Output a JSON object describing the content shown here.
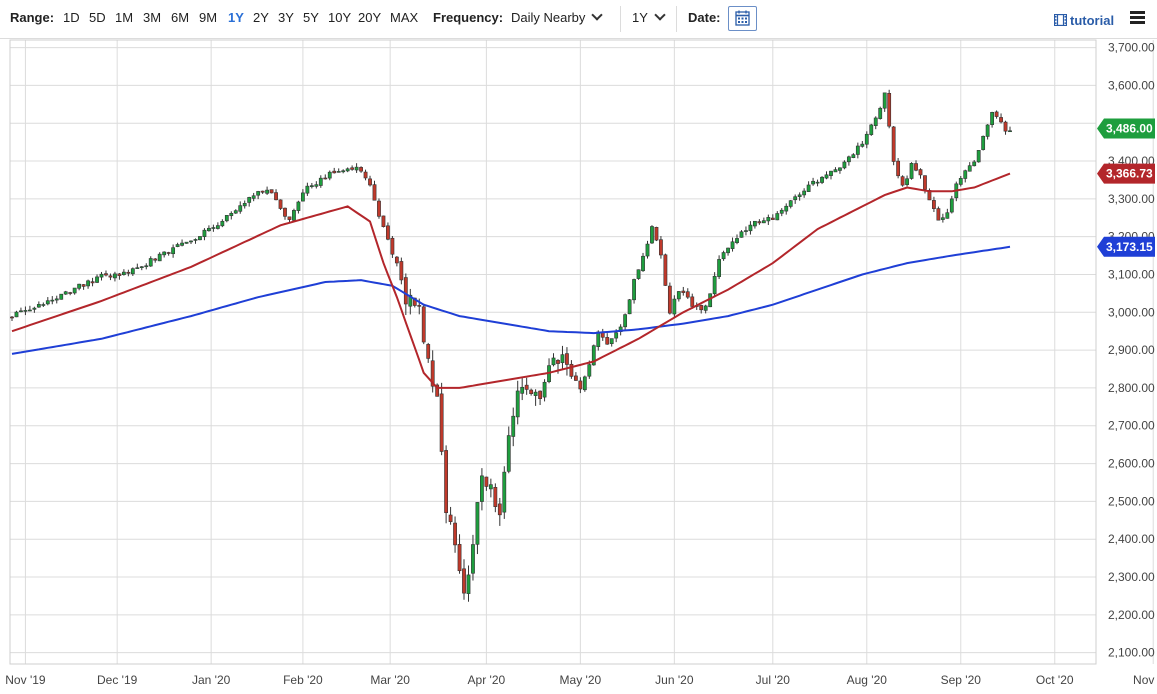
{
  "toolbar": {
    "range_label": "Range:",
    "ranges": [
      "1D",
      "5D",
      "1M",
      "3M",
      "6M",
      "9M",
      "1Y",
      "2Y",
      "3Y",
      "5Y",
      "10Y",
      "20Y",
      "MAX"
    ],
    "active_range": "1Y",
    "frequency_label": "Frequency:",
    "frequency_value": "Daily Nearby",
    "period_value": "1Y",
    "date_label": "Date:",
    "tutorial_label": "tutorial",
    "accent_color": "#2a6fd6"
  },
  "chart_data": {
    "type": "candlestick",
    "y_ticks": [
      "2,100.00",
      "2,200.00",
      "2,300.00",
      "2,400.00",
      "2,500.00",
      "2,600.00",
      "2,700.00",
      "2,800.00",
      "2,900.00",
      "3,000.00",
      "3,100.00",
      "3,200.00",
      "3,300.00",
      "3,400.00",
      "3,500.00",
      "3,600.00",
      "3,700.00"
    ],
    "ylim": [
      2070,
      3720
    ],
    "x_ticks": [
      "Nov '19",
      "Dec '19",
      "Jan '20",
      "Feb '20",
      "Mar '20",
      "Apr '20",
      "May '20",
      "Jun '20",
      "Jul '20",
      "Aug '20",
      "Sep '20",
      "Oct '20",
      "Nov '20"
    ],
    "grid": true,
    "badges": [
      {
        "label": "3,486.00",
        "value": 3486.0,
        "color": "#1e9e3e"
      },
      {
        "label": "3,366.73",
        "value": 3366.73,
        "color": "#b3262b"
      },
      {
        "label": "3,173.15",
        "value": 3173.15,
        "color": "#1f3fd6"
      }
    ],
    "colors": {
      "up": "#1e9e3e",
      "down": "#c0392b",
      "ma50": "#b3262b",
      "ma200": "#1f3fd6",
      "grid": "#dcdcdc"
    },
    "close_anchors": [
      [
        0,
        2990
      ],
      [
        10,
        3040
      ],
      [
        20,
        3095
      ],
      [
        27,
        3110
      ],
      [
        33,
        3150
      ],
      [
        40,
        3190
      ],
      [
        47,
        3240
      ],
      [
        53,
        3300
      ],
      [
        57,
        3330
      ],
      [
        62,
        3240
      ],
      [
        65,
        3320
      ],
      [
        70,
        3360
      ],
      [
        75,
        3385
      ],
      [
        78,
        3380
      ],
      [
        80,
        3330
      ],
      [
        83,
        3220
      ],
      [
        86,
        3130
      ],
      [
        88,
        3040
      ],
      [
        91,
        3000
      ],
      [
        93,
        2880
      ],
      [
        95,
        2760
      ],
      [
        97,
        2480
      ],
      [
        99,
        2390
      ],
      [
        101,
        2240
      ],
      [
        103,
        2390
      ],
      [
        105,
        2580
      ],
      [
        107,
        2530
      ],
      [
        109,
        2480
      ],
      [
        111,
        2660
      ],
      [
        113,
        2780
      ],
      [
        116,
        2800
      ],
      [
        118,
        2760
      ],
      [
        120,
        2860
      ],
      [
        123,
        2890
      ],
      [
        125,
        2830
      ],
      [
        127,
        2800
      ],
      [
        129,
        2860
      ],
      [
        131,
        2950
      ],
      [
        133,
        2910
      ],
      [
        136,
        2960
      ],
      [
        139,
        3080
      ],
      [
        143,
        3220
      ],
      [
        145,
        3150
      ],
      [
        147,
        3000
      ],
      [
        149,
        3060
      ],
      [
        152,
        3020
      ],
      [
        155,
        3010
      ],
      [
        158,
        3140
      ],
      [
        162,
        3200
      ],
      [
        166,
        3240
      ],
      [
        170,
        3250
      ],
      [
        175,
        3300
      ],
      [
        180,
        3350
      ],
      [
        185,
        3380
      ],
      [
        190,
        3450
      ],
      [
        193,
        3510
      ],
      [
        195,
        3580
      ],
      [
        197,
        3400
      ],
      [
        199,
        3330
      ],
      [
        201,
        3390
      ],
      [
        203,
        3360
      ],
      [
        205,
        3300
      ],
      [
        207,
        3240
      ],
      [
        209,
        3270
      ],
      [
        211,
        3340
      ],
      [
        213,
        3380
      ],
      [
        215,
        3400
      ],
      [
        217,
        3460
      ],
      [
        219,
        3530
      ],
      [
        222,
        3480
      ],
      [
        223,
        3486
      ]
    ],
    "ma50_anchors": [
      [
        0,
        2950
      ],
      [
        20,
        3030
      ],
      [
        40,
        3120
      ],
      [
        60,
        3230
      ],
      [
        75,
        3280
      ],
      [
        80,
        3240
      ],
      [
        83,
        3130
      ],
      [
        86,
        3040
      ],
      [
        89,
        2940
      ],
      [
        92,
        2840
      ],
      [
        95,
        2800
      ],
      [
        100,
        2800
      ],
      [
        110,
        2820
      ],
      [
        120,
        2840
      ],
      [
        130,
        2870
      ],
      [
        140,
        2930
      ],
      [
        150,
        3000
      ],
      [
        160,
        3060
      ],
      [
        170,
        3130
      ],
      [
        180,
        3220
      ],
      [
        190,
        3280
      ],
      [
        195,
        3310
      ],
      [
        200,
        3330
      ],
      [
        205,
        3320
      ],
      [
        210,
        3320
      ],
      [
        215,
        3330
      ],
      [
        223,
        3366.73
      ]
    ],
    "ma200_anchors": [
      [
        0,
        2890
      ],
      [
        20,
        2930
      ],
      [
        40,
        2990
      ],
      [
        55,
        3040
      ],
      [
        70,
        3080
      ],
      [
        78,
        3085
      ],
      [
        85,
        3070
      ],
      [
        92,
        3020
      ],
      [
        100,
        2990
      ],
      [
        110,
        2970
      ],
      [
        120,
        2950
      ],
      [
        130,
        2945
      ],
      [
        140,
        2955
      ],
      [
        150,
        2970
      ],
      [
        160,
        2990
      ],
      [
        170,
        3020
      ],
      [
        180,
        3060
      ],
      [
        190,
        3100
      ],
      [
        200,
        3130
      ],
      [
        210,
        3150
      ],
      [
        223,
        3173.15
      ]
    ]
  }
}
